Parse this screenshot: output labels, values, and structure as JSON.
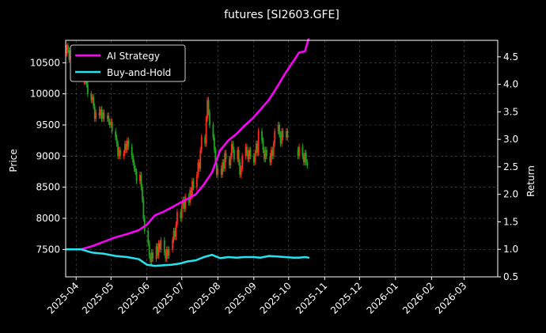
{
  "chart_data": {
    "type": "line",
    "title": "futures [SI2603.GFE]",
    "xlabel": "",
    "ylabel_left": "Price",
    "ylabel_right": "Return",
    "x_range": [
      "2025-03-23",
      "2026-03-30"
    ],
    "ylim_left": [
      7060,
      10860
    ],
    "ylim_right": [
      0.5,
      4.8
    ],
    "grid": true,
    "legend_position": "top-left",
    "x_tick_labels": [
      "2025-04",
      "2025-05",
      "2025-06",
      "2025-07",
      "2025-08",
      "2025-09",
      "2025-10",
      "2025-11",
      "2025-12",
      "2026-01",
      "2026-02",
      "2026-03"
    ],
    "x_tick_dates": [
      "2025-04-01",
      "2025-05-01",
      "2025-06-01",
      "2025-07-01",
      "2025-08-01",
      "2025-09-01",
      "2025-10-01",
      "2025-11-01",
      "2025-12-01",
      "2026-01-01",
      "2026-02-01",
      "2026-03-01"
    ],
    "left_ticks": [
      7500,
      8000,
      8500,
      9000,
      9500,
      10000,
      10500
    ],
    "right_ticks": [
      0.5,
      1.0,
      1.5,
      2.0,
      2.5,
      3.0,
      3.5,
      4.0,
      4.5
    ],
    "colors": {
      "ai_strategy": "#ff00ff",
      "buy_and_hold": "#22e5f0",
      "candle_up": "#ff2a1a",
      "candle_down": "#1fa51f",
      "grid": "#555555",
      "axes": "#ffffff",
      "background": "#000000"
    },
    "series": [
      {
        "name": "AI Strategy",
        "axis": "right",
        "points": [
          [
            "2025-03-24",
            1.0
          ],
          [
            "2025-04-05",
            1.0
          ],
          [
            "2025-04-15",
            1.06
          ],
          [
            "2025-04-25",
            1.14
          ],
          [
            "2025-05-05",
            1.22
          ],
          [
            "2025-05-15",
            1.28
          ],
          [
            "2025-05-25",
            1.35
          ],
          [
            "2025-06-01",
            1.45
          ],
          [
            "2025-06-08",
            1.62
          ],
          [
            "2025-06-15",
            1.68
          ],
          [
            "2025-06-22",
            1.76
          ],
          [
            "2025-06-29",
            1.84
          ],
          [
            "2025-07-06",
            1.92
          ],
          [
            "2025-07-13",
            2.0
          ],
          [
            "2025-07-20",
            2.18
          ],
          [
            "2025-07-27",
            2.4
          ],
          [
            "2025-08-03",
            2.8
          ],
          [
            "2025-08-10",
            2.98
          ],
          [
            "2025-08-17",
            3.1
          ],
          [
            "2025-08-24",
            3.25
          ],
          [
            "2025-08-31",
            3.38
          ],
          [
            "2025-09-07",
            3.55
          ],
          [
            "2025-09-14",
            3.72
          ],
          [
            "2025-09-21",
            3.95
          ],
          [
            "2025-09-28",
            4.2
          ],
          [
            "2025-10-05",
            4.42
          ],
          [
            "2025-10-10",
            4.58
          ],
          [
            "2025-10-15",
            4.6
          ],
          [
            "2025-10-18",
            4.82
          ]
        ]
      },
      {
        "name": "Buy-and-Hold",
        "axis": "right",
        "points": [
          [
            "2025-03-24",
            1.0
          ],
          [
            "2025-04-05",
            1.0
          ],
          [
            "2025-04-15",
            0.94
          ],
          [
            "2025-04-25",
            0.92
          ],
          [
            "2025-05-05",
            0.88
          ],
          [
            "2025-05-15",
            0.86
          ],
          [
            "2025-05-25",
            0.82
          ],
          [
            "2025-06-01",
            0.72
          ],
          [
            "2025-06-08",
            0.7
          ],
          [
            "2025-06-15",
            0.71
          ],
          [
            "2025-06-22",
            0.72
          ],
          [
            "2025-06-29",
            0.74
          ],
          [
            "2025-07-06",
            0.78
          ],
          [
            "2025-07-13",
            0.8
          ],
          [
            "2025-07-20",
            0.86
          ],
          [
            "2025-07-27",
            0.9
          ],
          [
            "2025-08-03",
            0.84
          ],
          [
            "2025-08-10",
            0.86
          ],
          [
            "2025-08-17",
            0.85
          ],
          [
            "2025-08-24",
            0.86
          ],
          [
            "2025-08-31",
            0.86
          ],
          [
            "2025-09-07",
            0.85
          ],
          [
            "2025-09-14",
            0.88
          ],
          [
            "2025-09-21",
            0.87
          ],
          [
            "2025-09-28",
            0.86
          ],
          [
            "2025-10-05",
            0.85
          ],
          [
            "2025-10-10",
            0.85
          ],
          [
            "2025-10-15",
            0.86
          ],
          [
            "2025-10-18",
            0.85
          ]
        ]
      }
    ],
    "candles": [
      [
        "2025-03-24",
        10650,
        10780,
        10600,
        10800
      ],
      [
        "2025-03-25",
        10780,
        10700,
        10650,
        10820
      ],
      [
        "2025-03-26",
        10700,
        10550,
        10500,
        10750
      ],
      [
        "2025-03-27",
        10550,
        10620,
        10500,
        10700
      ],
      [
        "2025-03-28",
        10620,
        10480,
        10450,
        10660
      ],
      [
        "2025-03-31",
        10480,
        10550,
        10420,
        10600
      ],
      [
        "2025-04-01",
        10550,
        10420,
        10380,
        10600
      ],
      [
        "2025-04-02",
        10420,
        10500,
        10380,
        10560
      ],
      [
        "2025-04-03",
        10500,
        10350,
        10300,
        10540
      ],
      [
        "2025-04-04",
        10350,
        10400,
        10280,
        10450
      ],
      [
        "2025-04-07",
        10400,
        10250,
        10200,
        10450
      ],
      [
        "2025-04-08",
        10250,
        10300,
        10150,
        10350
      ],
      [
        "2025-04-09",
        10300,
        10200,
        10150,
        10350
      ],
      [
        "2025-04-10",
        10200,
        10150,
        10100,
        10250
      ],
      [
        "2025-04-11",
        10150,
        10000,
        9950,
        10200
      ],
      [
        "2025-04-14",
        10000,
        9900,
        9850,
        10050
      ],
      [
        "2025-04-15",
        9900,
        9950,
        9850,
        10000
      ],
      [
        "2025-04-16",
        9950,
        9800,
        9750,
        10000
      ],
      [
        "2025-04-17",
        9800,
        9600,
        9550,
        9850
      ],
      [
        "2025-04-18",
        9600,
        9700,
        9550,
        9750
      ],
      [
        "2025-04-21",
        9700,
        9650,
        9600,
        9800
      ],
      [
        "2025-04-22",
        9650,
        9750,
        9600,
        9800
      ],
      [
        "2025-04-23",
        9750,
        9600,
        9550,
        9800
      ],
      [
        "2025-04-24",
        9600,
        9700,
        9550,
        9750
      ],
      [
        "2025-04-25",
        9700,
        9600,
        9550,
        9750
      ],
      [
        "2025-04-28",
        9600,
        9650,
        9550,
        9700
      ],
      [
        "2025-04-29",
        9650,
        9550,
        9500,
        9700
      ],
      [
        "2025-04-30",
        9550,
        9500,
        9450,
        9600
      ],
      [
        "2025-05-01",
        9500,
        9550,
        9450,
        9600
      ],
      [
        "2025-05-02",
        9550,
        9400,
        9350,
        9600
      ],
      [
        "2025-05-05",
        9400,
        9300,
        9250,
        9450
      ],
      [
        "2025-05-06",
        9300,
        9200,
        9150,
        9350
      ],
      [
        "2025-05-07",
        9200,
        9000,
        8950,
        9250
      ],
      [
        "2025-05-08",
        9000,
        9100,
        8950,
        9150
      ],
      [
        "2025-05-09",
        9100,
        9000,
        8950,
        9150
      ],
      [
        "2025-05-12",
        9000,
        9050,
        8950,
        9100
      ],
      [
        "2025-05-13",
        9050,
        9200,
        9000,
        9250
      ],
      [
        "2025-05-14",
        9200,
        9100,
        9050,
        9250
      ],
      [
        "2025-05-15",
        9100,
        9250,
        9050,
        9300
      ],
      [
        "2025-05-16",
        9250,
        9150,
        9100,
        9300
      ],
      [
        "2025-05-19",
        9150,
        9000,
        8950,
        9200
      ],
      [
        "2025-05-20",
        9000,
        8900,
        8850,
        9050
      ],
      [
        "2025-05-21",
        8900,
        8800,
        8750,
        8950
      ],
      [
        "2025-05-22",
        8800,
        8750,
        8700,
        8850
      ],
      [
        "2025-05-23",
        8750,
        8600,
        8550,
        8800
      ],
      [
        "2025-05-26",
        8600,
        8700,
        8550,
        8750
      ],
      [
        "2025-05-27",
        8700,
        8500,
        8450,
        8750
      ],
      [
        "2025-05-28",
        8500,
        8300,
        8250,
        8550
      ],
      [
        "2025-05-29",
        8300,
        8000,
        7950,
        8350
      ],
      [
        "2025-05-30",
        8000,
        7800,
        7750,
        8050
      ],
      [
        "2025-06-02",
        7800,
        7600,
        7550,
        7850
      ],
      [
        "2025-06-03",
        7600,
        7400,
        7350,
        7650
      ],
      [
        "2025-06-04",
        7400,
        7300,
        7250,
        7450
      ],
      [
        "2025-06-05",
        7300,
        7450,
        7250,
        7500
      ],
      [
        "2025-06-06",
        7450,
        7350,
        7300,
        7500
      ],
      [
        "2025-06-09",
        7350,
        7550,
        7300,
        7600
      ],
      [
        "2025-06-10",
        7550,
        7400,
        7350,
        7600
      ],
      [
        "2025-06-11",
        7400,
        7600,
        7350,
        7650
      ],
      [
        "2025-06-12",
        7600,
        7500,
        7450,
        7650
      ],
      [
        "2025-06-13",
        7500,
        7650,
        7450,
        7700
      ],
      [
        "2025-06-16",
        7650,
        7450,
        7400,
        7700
      ],
      [
        "2025-06-17",
        7450,
        7350,
        7300,
        7500
      ],
      [
        "2025-06-18",
        7350,
        7500,
        7300,
        7550
      ],
      [
        "2025-06-19",
        7500,
        7400,
        7350,
        7550
      ],
      [
        "2025-06-20",
        7400,
        7500,
        7350,
        7550
      ],
      [
        "2025-06-23",
        7500,
        7650,
        7450,
        7700
      ],
      [
        "2025-06-24",
        7650,
        7800,
        7600,
        7850
      ],
      [
        "2025-06-25",
        7800,
        7700,
        7650,
        7850
      ],
      [
        "2025-06-26",
        7700,
        7900,
        7650,
        7950
      ],
      [
        "2025-06-27",
        7900,
        8100,
        7850,
        8150
      ],
      [
        "2025-06-30",
        8100,
        8000,
        7950,
        8150
      ],
      [
        "2025-07-01",
        8000,
        8200,
        7950,
        8250
      ],
      [
        "2025-07-02",
        8200,
        8300,
        8150,
        8350
      ],
      [
        "2025-07-03",
        8300,
        8150,
        8100,
        8350
      ],
      [
        "2025-07-04",
        8150,
        8350,
        8100,
        8400
      ],
      [
        "2025-07-07",
        8350,
        8250,
        8200,
        8400
      ],
      [
        "2025-07-08",
        8250,
        8450,
        8200,
        8500
      ],
      [
        "2025-07-09",
        8450,
        8350,
        8300,
        8500
      ],
      [
        "2025-07-10",
        8350,
        8600,
        8300,
        8650
      ],
      [
        "2025-07-11",
        8600,
        8500,
        8450,
        8650
      ],
      [
        "2025-07-14",
        8500,
        8700,
        8450,
        8750
      ],
      [
        "2025-07-15",
        8700,
        8900,
        8650,
        8950
      ],
      [
        "2025-07-16",
        8900,
        8800,
        8750,
        8950
      ],
      [
        "2025-07-17",
        8800,
        9100,
        8750,
        9150
      ],
      [
        "2025-07-18",
        9100,
        9300,
        9050,
        9350
      ],
      [
        "2025-07-21",
        9300,
        9200,
        9150,
        9350
      ],
      [
        "2025-07-22",
        9200,
        9600,
        9150,
        9650
      ],
      [
        "2025-07-23",
        9600,
        9900,
        9550,
        9950
      ],
      [
        "2025-07-24",
        9900,
        9700,
        9650,
        9950
      ],
      [
        "2025-07-25",
        9700,
        9500,
        9450,
        9750
      ],
      [
        "2025-07-28",
        9500,
        9300,
        9250,
        9550
      ],
      [
        "2025-07-29",
        9300,
        9100,
        9050,
        9350
      ],
      [
        "2025-07-30",
        9100,
        8900,
        8850,
        9150
      ],
      [
        "2025-07-31",
        8900,
        8700,
        8650,
        8950
      ],
      [
        "2025-08-01",
        8700,
        8800,
        8650,
        8850
      ],
      [
        "2025-08-04",
        8800,
        8700,
        8650,
        8850
      ],
      [
        "2025-08-05",
        8700,
        8900,
        8650,
        8950
      ],
      [
        "2025-08-06",
        8900,
        8800,
        8750,
        8950
      ],
      [
        "2025-08-07",
        8800,
        9050,
        8750,
        9100
      ],
      [
        "2025-08-08",
        9050,
        8950,
        8900,
        9100
      ],
      [
        "2025-08-11",
        8950,
        8850,
        8800,
        9000
      ],
      [
        "2025-08-12",
        8850,
        9000,
        8800,
        9050
      ],
      [
        "2025-08-13",
        9000,
        9200,
        8950,
        9250
      ],
      [
        "2025-08-14",
        9200,
        9100,
        9050,
        9250
      ],
      [
        "2025-08-15",
        9100,
        8950,
        8900,
        9150
      ],
      [
        "2025-08-18",
        8950,
        9100,
        8900,
        9150
      ],
      [
        "2025-08-19",
        9100,
        8900,
        8850,
        9150
      ],
      [
        "2025-08-20",
        8900,
        8700,
        8650,
        8950
      ],
      [
        "2025-08-21",
        8700,
        8800,
        8650,
        8850
      ],
      [
        "2025-08-22",
        8800,
        9000,
        8750,
        9050
      ],
      [
        "2025-08-25",
        9000,
        9150,
        8950,
        9200
      ],
      [
        "2025-08-26",
        9150,
        9050,
        9000,
        9200
      ],
      [
        "2025-08-27",
        9050,
        8950,
        8900,
        9100
      ],
      [
        "2025-08-28",
        8950,
        9100,
        8900,
        9150
      ],
      [
        "2025-08-29",
        9100,
        9000,
        8950,
        9150
      ],
      [
        "2025-09-01",
        9000,
        8900,
        8850,
        9050
      ],
      [
        "2025-09-02",
        8900,
        9050,
        8850,
        9100
      ],
      [
        "2025-09-03",
        9050,
        9200,
        9000,
        9250
      ],
      [
        "2025-09-04",
        9200,
        9050,
        9000,
        9250
      ],
      [
        "2025-09-05",
        9050,
        9400,
        9000,
        9450
      ],
      [
        "2025-09-08",
        9400,
        9250,
        9200,
        9450
      ],
      [
        "2025-09-09",
        9250,
        9100,
        9050,
        9300
      ],
      [
        "2025-09-10",
        9100,
        8950,
        8900,
        9150
      ],
      [
        "2025-09-11",
        8950,
        9100,
        8900,
        9150
      ],
      [
        "2025-09-12",
        9100,
        9000,
        8950,
        9150
      ],
      [
        "2025-09-15",
        9000,
        8900,
        8850,
        9050
      ],
      [
        "2025-09-16",
        8900,
        9100,
        8850,
        9150
      ],
      [
        "2025-09-17",
        9100,
        9000,
        8950,
        9150
      ],
      [
        "2025-09-18",
        9000,
        9200,
        8950,
        9250
      ],
      [
        "2025-09-19",
        9200,
        9400,
        9150,
        9450
      ],
      [
        "2025-09-22",
        9400,
        9500,
        9350,
        9550
      ],
      [
        "2025-09-23",
        9500,
        9350,
        9300,
        9550
      ],
      [
        "2025-09-24",
        9350,
        9200,
        9150,
        9400
      ],
      [
        "2025-09-25",
        9200,
        9400,
        9150,
        9450
      ],
      [
        "2025-09-26",
        9400,
        9300,
        9250,
        9450
      ],
      [
        "2025-09-29",
        9300,
        9400,
        9250,
        9450
      ],
      [
        "2025-09-30",
        9400,
        9300,
        9250,
        9450
      ],
      [
        "2025-10-09",
        9100,
        9000,
        8950,
        9150
      ],
      [
        "2025-10-10",
        9000,
        9150,
        8950,
        9200
      ],
      [
        "2025-10-13",
        9150,
        9000,
        8950,
        9200
      ],
      [
        "2025-10-14",
        9000,
        8900,
        8850,
        9050
      ],
      [
        "2025-10-15",
        8900,
        9050,
        8850,
        9100
      ],
      [
        "2025-10-16",
        9050,
        8900,
        8850,
        9100
      ],
      [
        "2025-10-17",
        8900,
        8850,
        8800,
        8950
      ]
    ]
  }
}
